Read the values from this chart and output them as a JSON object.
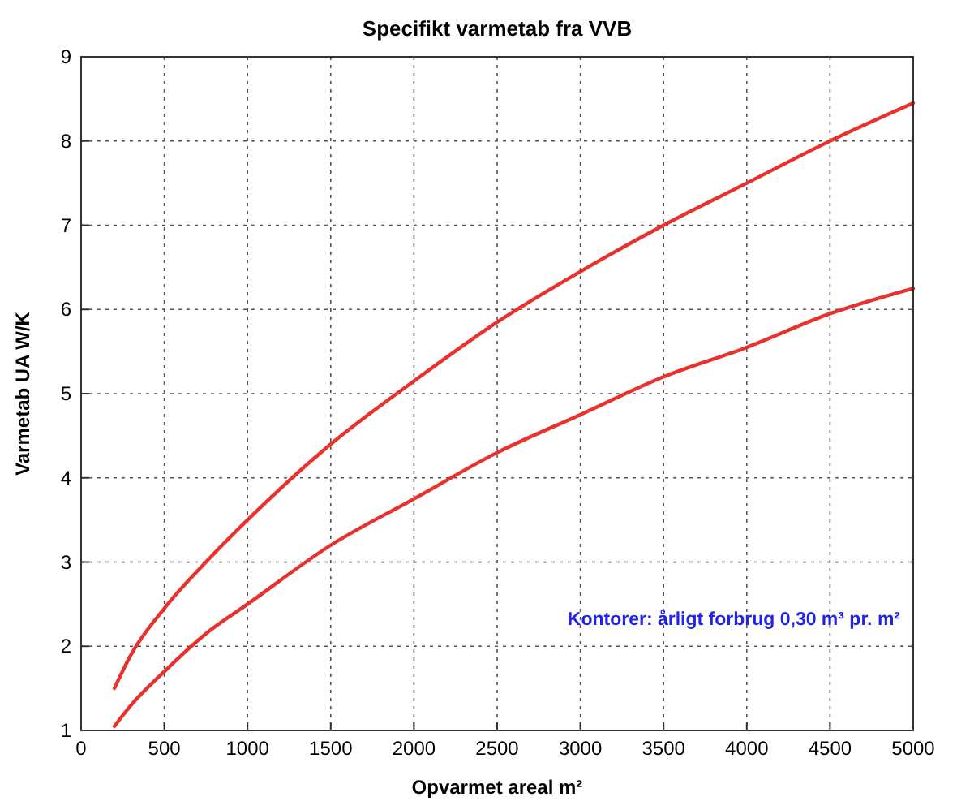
{
  "chart_data": {
    "type": "line",
    "title": "Specifikt varmetab fra VVB",
    "xlabel": "Opvarmet areal m²",
    "ylabel": "Varmetab UA W/K",
    "annotations": [
      "Kontorer: årligt forbrug 0,30 m³ pr. m²"
    ],
    "x": [
      200,
      300,
      500,
      750,
      1000,
      1500,
      2000,
      2500,
      3000,
      3500,
      4000,
      4500,
      5000
    ],
    "series": [
      {
        "color": "#e8322e",
        "values": [
          1.5,
          1.9,
          2.45,
          3.0,
          3.5,
          4.4,
          5.15,
          5.85,
          6.45,
          7.0,
          7.5,
          8.0,
          8.45
        ]
      },
      {
        "color": "#e8322e",
        "values": [
          1.05,
          1.3,
          1.7,
          2.15,
          2.5,
          3.2,
          3.75,
          4.3,
          4.75,
          5.2,
          5.55,
          5.95,
          6.25
        ]
      }
    ],
    "xlim": [
      0,
      5000
    ],
    "xticks": [
      0,
      500,
      1000,
      1500,
      2000,
      2500,
      3000,
      3500,
      4000,
      4500,
      5000
    ],
    "ylim": [
      1,
      9
    ],
    "yticks": [
      1,
      2,
      3,
      4,
      5,
      6,
      7,
      8,
      9
    ],
    "grid": true
  }
}
